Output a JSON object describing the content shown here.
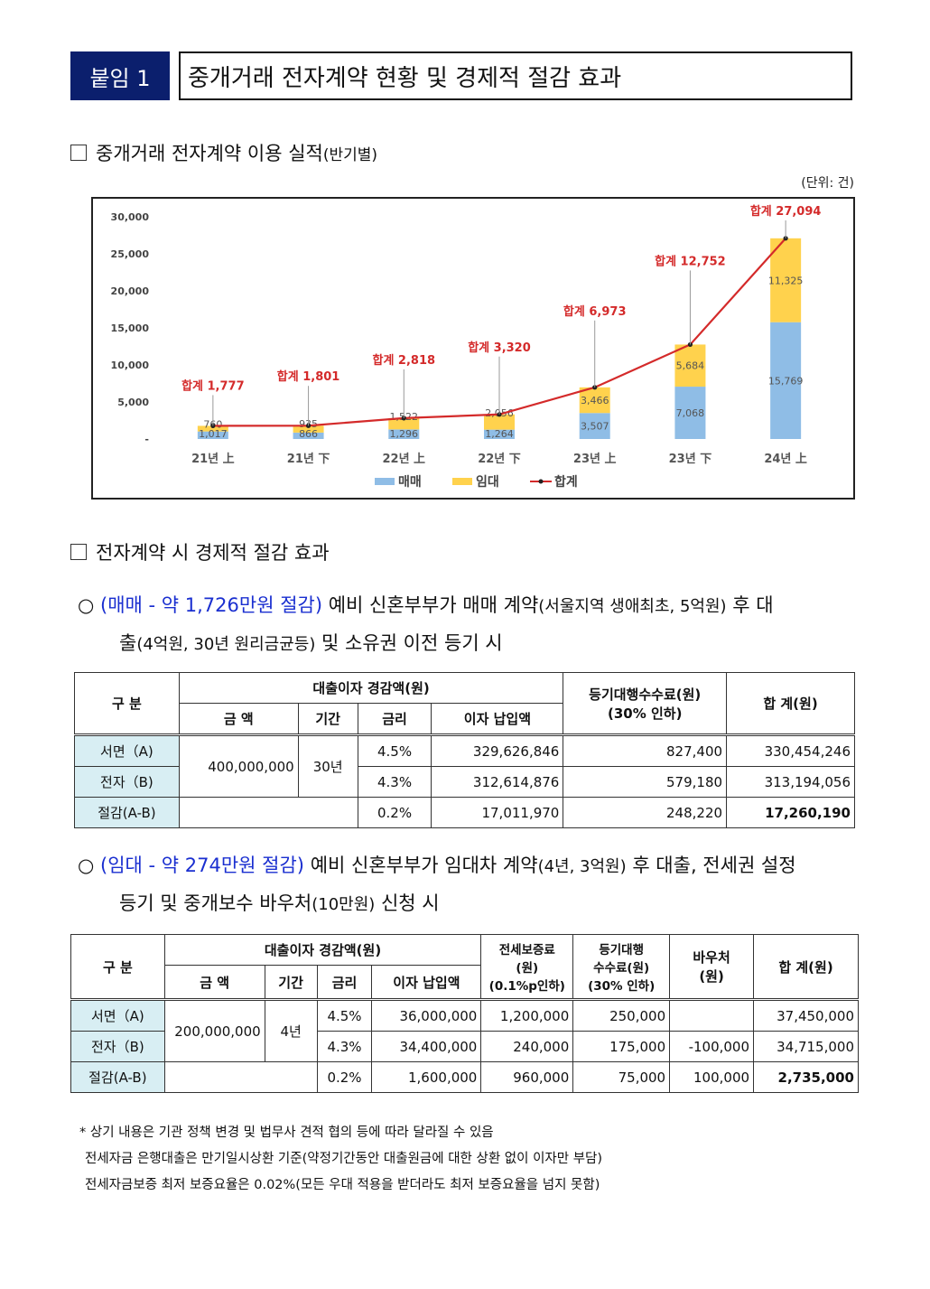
{
  "header": {
    "badge": "붙임 1",
    "title": "중개거래 전자계약 현황 및 경제적 절감 효과"
  },
  "section1": {
    "title": "중개거래 전자계약 이용 실적",
    "subtitle": "(반기별)",
    "unit": "(단위: 건)"
  },
  "chart_data": {
    "type": "bar",
    "stacked": true,
    "categories": [
      "21년 上",
      "21년 下",
      "22년 上",
      "22년 下",
      "23년 上",
      "23년 下",
      "24년 上"
    ],
    "series": [
      {
        "name": "매매",
        "values": [
          1017,
          866,
          1296,
          1264,
          3507,
          7068,
          15769
        ],
        "color": "#8fbde6"
      },
      {
        "name": "임대",
        "values": [
          760,
          935,
          1522,
          2056,
          3466,
          5684,
          11325
        ],
        "color": "#ffd24d"
      },
      {
        "name": "합계",
        "type": "line",
        "values": [
          1777,
          1801,
          2818,
          3320,
          6973,
          12752,
          27094
        ],
        "color": "#d42a2a"
      }
    ],
    "total_labels": [
      "합계 1,777",
      "합계 1,801",
      "합계 2,818",
      "합계 3,320",
      "합계 6,973",
      "합계 12,752",
      "합계 27,094"
    ],
    "yticks": [
      "-",
      "5,000",
      "10,000",
      "15,000",
      "20,000",
      "25,000",
      "30,000"
    ],
    "ylim": [
      0,
      30000
    ],
    "legend_position": "bottom"
  },
  "section2": {
    "title": "전자계약 시 경제적 절감 효과"
  },
  "bullet1": {
    "highlight": "(매매 - 약 1,726만원 절감)",
    "t1": " 예비 신혼부부가 매매 계약",
    "t2": "(서울지역 생애최초, 5억원)",
    "t3": " 후 대",
    "t4": "출",
    "t5": "(4억원, 30년 원리금균등)",
    "t6": " 및 소유권 이전 등기 시"
  },
  "table1": {
    "h_gubun": "구 분",
    "h_loan": "대출이자 경감액(원)",
    "h_amount": "금 액",
    "h_period": "기간",
    "h_rate": "금리",
    "h_interest": "이자 납입액",
    "h_fee": "등기대행수수료(원)",
    "h_fee2": "(30% 인하)",
    "h_total": "합 계(원)",
    "amount": "400,000,000",
    "period": "30년",
    "rows": [
      {
        "label": "서면（A)",
        "rate": "4.5%",
        "interest": "329,626,846",
        "fee": "827,400",
        "total": "330,454,246"
      },
      {
        "label": "전자（B)",
        "rate": "4.3%",
        "interest": "312,614,876",
        "fee": "579,180",
        "total": "313,194,056"
      },
      {
        "label": "절감(A-B)",
        "rate": "0.2%",
        "interest": "17,011,970",
        "fee": "248,220",
        "total": "17,260,190"
      }
    ]
  },
  "bullet2": {
    "highlight": "(임대 - 약 274만원 절감)",
    "t1": " 예비 신혼부부가 임대차 계약",
    "t2": "(4년, 3억원)",
    "t3": " 후 대출, 전세권 설정",
    "t4": "등기 및 중개보수 바우처",
    "t5": "(10만원)",
    "t6": " 신청 시"
  },
  "table2": {
    "h_gubun": "구 분",
    "h_loan": "대출이자 경감액(원)",
    "h_amount": "금 액",
    "h_period": "기간",
    "h_rate": "금리",
    "h_interest": "이자 납입액",
    "h_guar": "전세보증료",
    "h_guar2": "(원)",
    "h_guar3": "(0.1%p인하)",
    "h_fee": "등기대행",
    "h_fee2": "수수료(원)",
    "h_fee3": "(30% 인하)",
    "h_voucher": "바우처",
    "h_voucher2": "(원)",
    "h_total": "합 계(원)",
    "amount": "200,000,000",
    "period": "4년",
    "rows": [
      {
        "label": "서면（A)",
        "rate": "4.5%",
        "interest": "36,000,000",
        "guar": "1,200,000",
        "fee": "250,000",
        "voucher": "",
        "total": "37,450,000"
      },
      {
        "label": "전자（B)",
        "rate": "4.3%",
        "interest": "34,400,000",
        "guar": "240,000",
        "fee": "175,000",
        "voucher": "-100,000",
        "total": "34,715,000"
      },
      {
        "label": "절감(A-B)",
        "rate": "0.2%",
        "interest": "1,600,000",
        "guar": "960,000",
        "fee": "75,000",
        "voucher": "100,000",
        "total": "2,735,000"
      }
    ]
  },
  "notes": [
    "* 상기 내용은 기관 정책 변경 및 법무사 견적 협의 등에 따라 달라질 수 있음",
    "전세자금 은행대출은 만기일시상환 기준(약정기간동안 대출원금에 대한 상환 없이 이자만 부담)",
    "전세자금보증 최저 보증요율은 0.02%(모든 우대 적용을 받더라도 최저 보증요율을 넘지 못함)"
  ]
}
